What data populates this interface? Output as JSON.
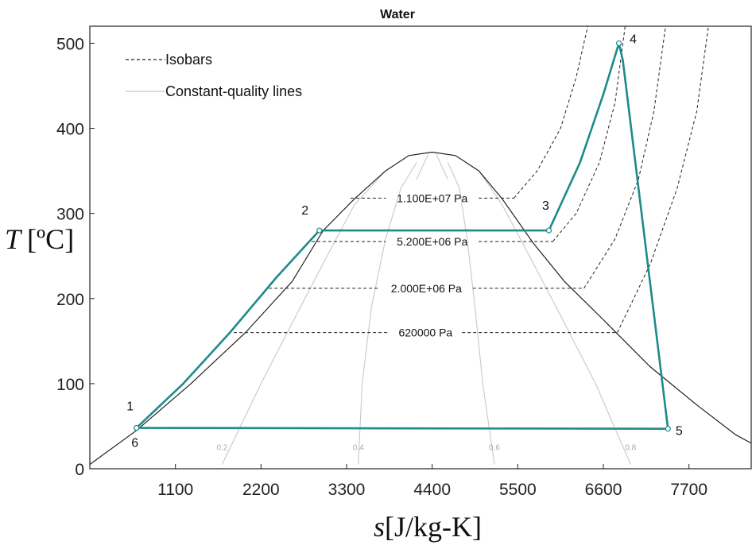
{
  "chart_data": {
    "type": "line",
    "title": "Water",
    "xlabel_main": "s",
    "xlabel_unit": "[J/kg-K]",
    "ylabel_main": "T",
    "ylabel_unit": "[ºC]",
    "xlim": [
      0,
      8500
    ],
    "ylim": [
      0,
      520
    ],
    "x_ticks": [
      1100,
      2200,
      3300,
      4400,
      5500,
      6600,
      7700
    ],
    "y_ticks": [
      0,
      100,
      200,
      300,
      400,
      500
    ],
    "legend": {
      "placement": "top-left",
      "entries": [
        {
          "label": "Isobars",
          "style": "dashed"
        },
        {
          "label": "Constant-quality lines",
          "style": "solid"
        }
      ]
    },
    "saturation_dome": {
      "s": [
        0,
        600,
        1300,
        2000,
        2600,
        3000,
        3400,
        3800,
        4100,
        4400,
        4700,
        5000,
        5300,
        5700,
        6100,
        6600,
        7200,
        7800,
        8300,
        8500
      ],
      "T": [
        5,
        45,
        100,
        160,
        220,
        280,
        317,
        350,
        368,
        372,
        368,
        350,
        317,
        265,
        220,
        175,
        120,
        75,
        40,
        30
      ]
    },
    "isobars": [
      {
        "label": "1.100E+07 Pa",
        "T": 318,
        "s_from": 3350,
        "s_to": 5450,
        "superheat": {
          "s": [
            5450,
            5750,
            6050,
            6250,
            6400
          ],
          "T": [
            318,
            350,
            400,
            460,
            520
          ]
        }
      },
      {
        "label": "5.200E+06 Pa",
        "T": 267,
        "s_from": 2850,
        "s_to": 5950,
        "superheat": {
          "s": [
            5950,
            6250,
            6550,
            6750,
            6880
          ],
          "T": [
            267,
            300,
            360,
            430,
            520
          ]
        }
      },
      {
        "label": "2.000E+06 Pa",
        "T": 212,
        "s_from": 2300,
        "s_to": 6350,
        "superheat": {
          "s": [
            6350,
            6750,
            7050,
            7250,
            7400
          ],
          "T": [
            212,
            270,
            340,
            420,
            520
          ]
        }
      },
      {
        "label": "620000 Pa",
        "T": 160,
        "s_from": 1850,
        "s_to": 6780,
        "superheat": {
          "s": [
            6780,
            7200,
            7550,
            7800,
            7950
          ],
          "T": [
            160,
            240,
            330,
            420,
            520
          ]
        }
      }
    ],
    "quality_lines": [
      {
        "label": "0.2",
        "s": [
          1700,
          2200,
          2650,
          3050,
          3400,
          3800
        ],
        "T": [
          5,
          100,
          180,
          250,
          310,
          350
        ]
      },
      {
        "label": "0.4",
        "s": [
          3450,
          3500,
          3620,
          3800,
          4000,
          4200
        ],
        "T": [
          5,
          100,
          190,
          270,
          330,
          360
        ]
      },
      {
        "label": "0.6",
        "s": [
          5200,
          5050,
          4950,
          4850,
          4750,
          4600
        ],
        "T": [
          5,
          100,
          190,
          270,
          330,
          360
        ]
      },
      {
        "label": "0.8",
        "s": [
          6950,
          6500,
          6050,
          5650,
          5300,
          5000
        ],
        "T": [
          5,
          100,
          180,
          250,
          310,
          350
        ]
      }
    ],
    "extra_quality_curves": [
      {
        "s": [
          4200,
          4250,
          4300,
          4350
        ],
        "T": [
          340,
          350,
          360,
          370
        ]
      },
      {
        "s": [
          4600,
          4550,
          4500,
          4450
        ],
        "T": [
          340,
          350,
          360,
          370
        ]
      }
    ],
    "cycle": {
      "s": [
        600,
        1200,
        1800,
        2400,
        2950,
        5900,
        6050,
        6300,
        6600,
        6800,
        6850,
        7430,
        600
      ],
      "T": [
        48,
        100,
        160,
        225,
        280,
        280,
        310,
        360,
        440,
        500,
        480,
        47,
        48
      ]
    },
    "points": [
      {
        "label": "1",
        "s": 600,
        "T": 48
      },
      {
        "label": "2",
        "s": 2950,
        "T": 280
      },
      {
        "label": "3",
        "s": 5900,
        "T": 280
      },
      {
        "label": "4",
        "s": 6800,
        "T": 500
      },
      {
        "label": "5",
        "s": 7430,
        "T": 47
      },
      {
        "label": "6",
        "s": 600,
        "T": 48
      }
    ],
    "colors": {
      "cycle": "#1e8a8a",
      "dome": "#222222",
      "isobar": "#222222",
      "quality": "#c8c8c8"
    }
  }
}
